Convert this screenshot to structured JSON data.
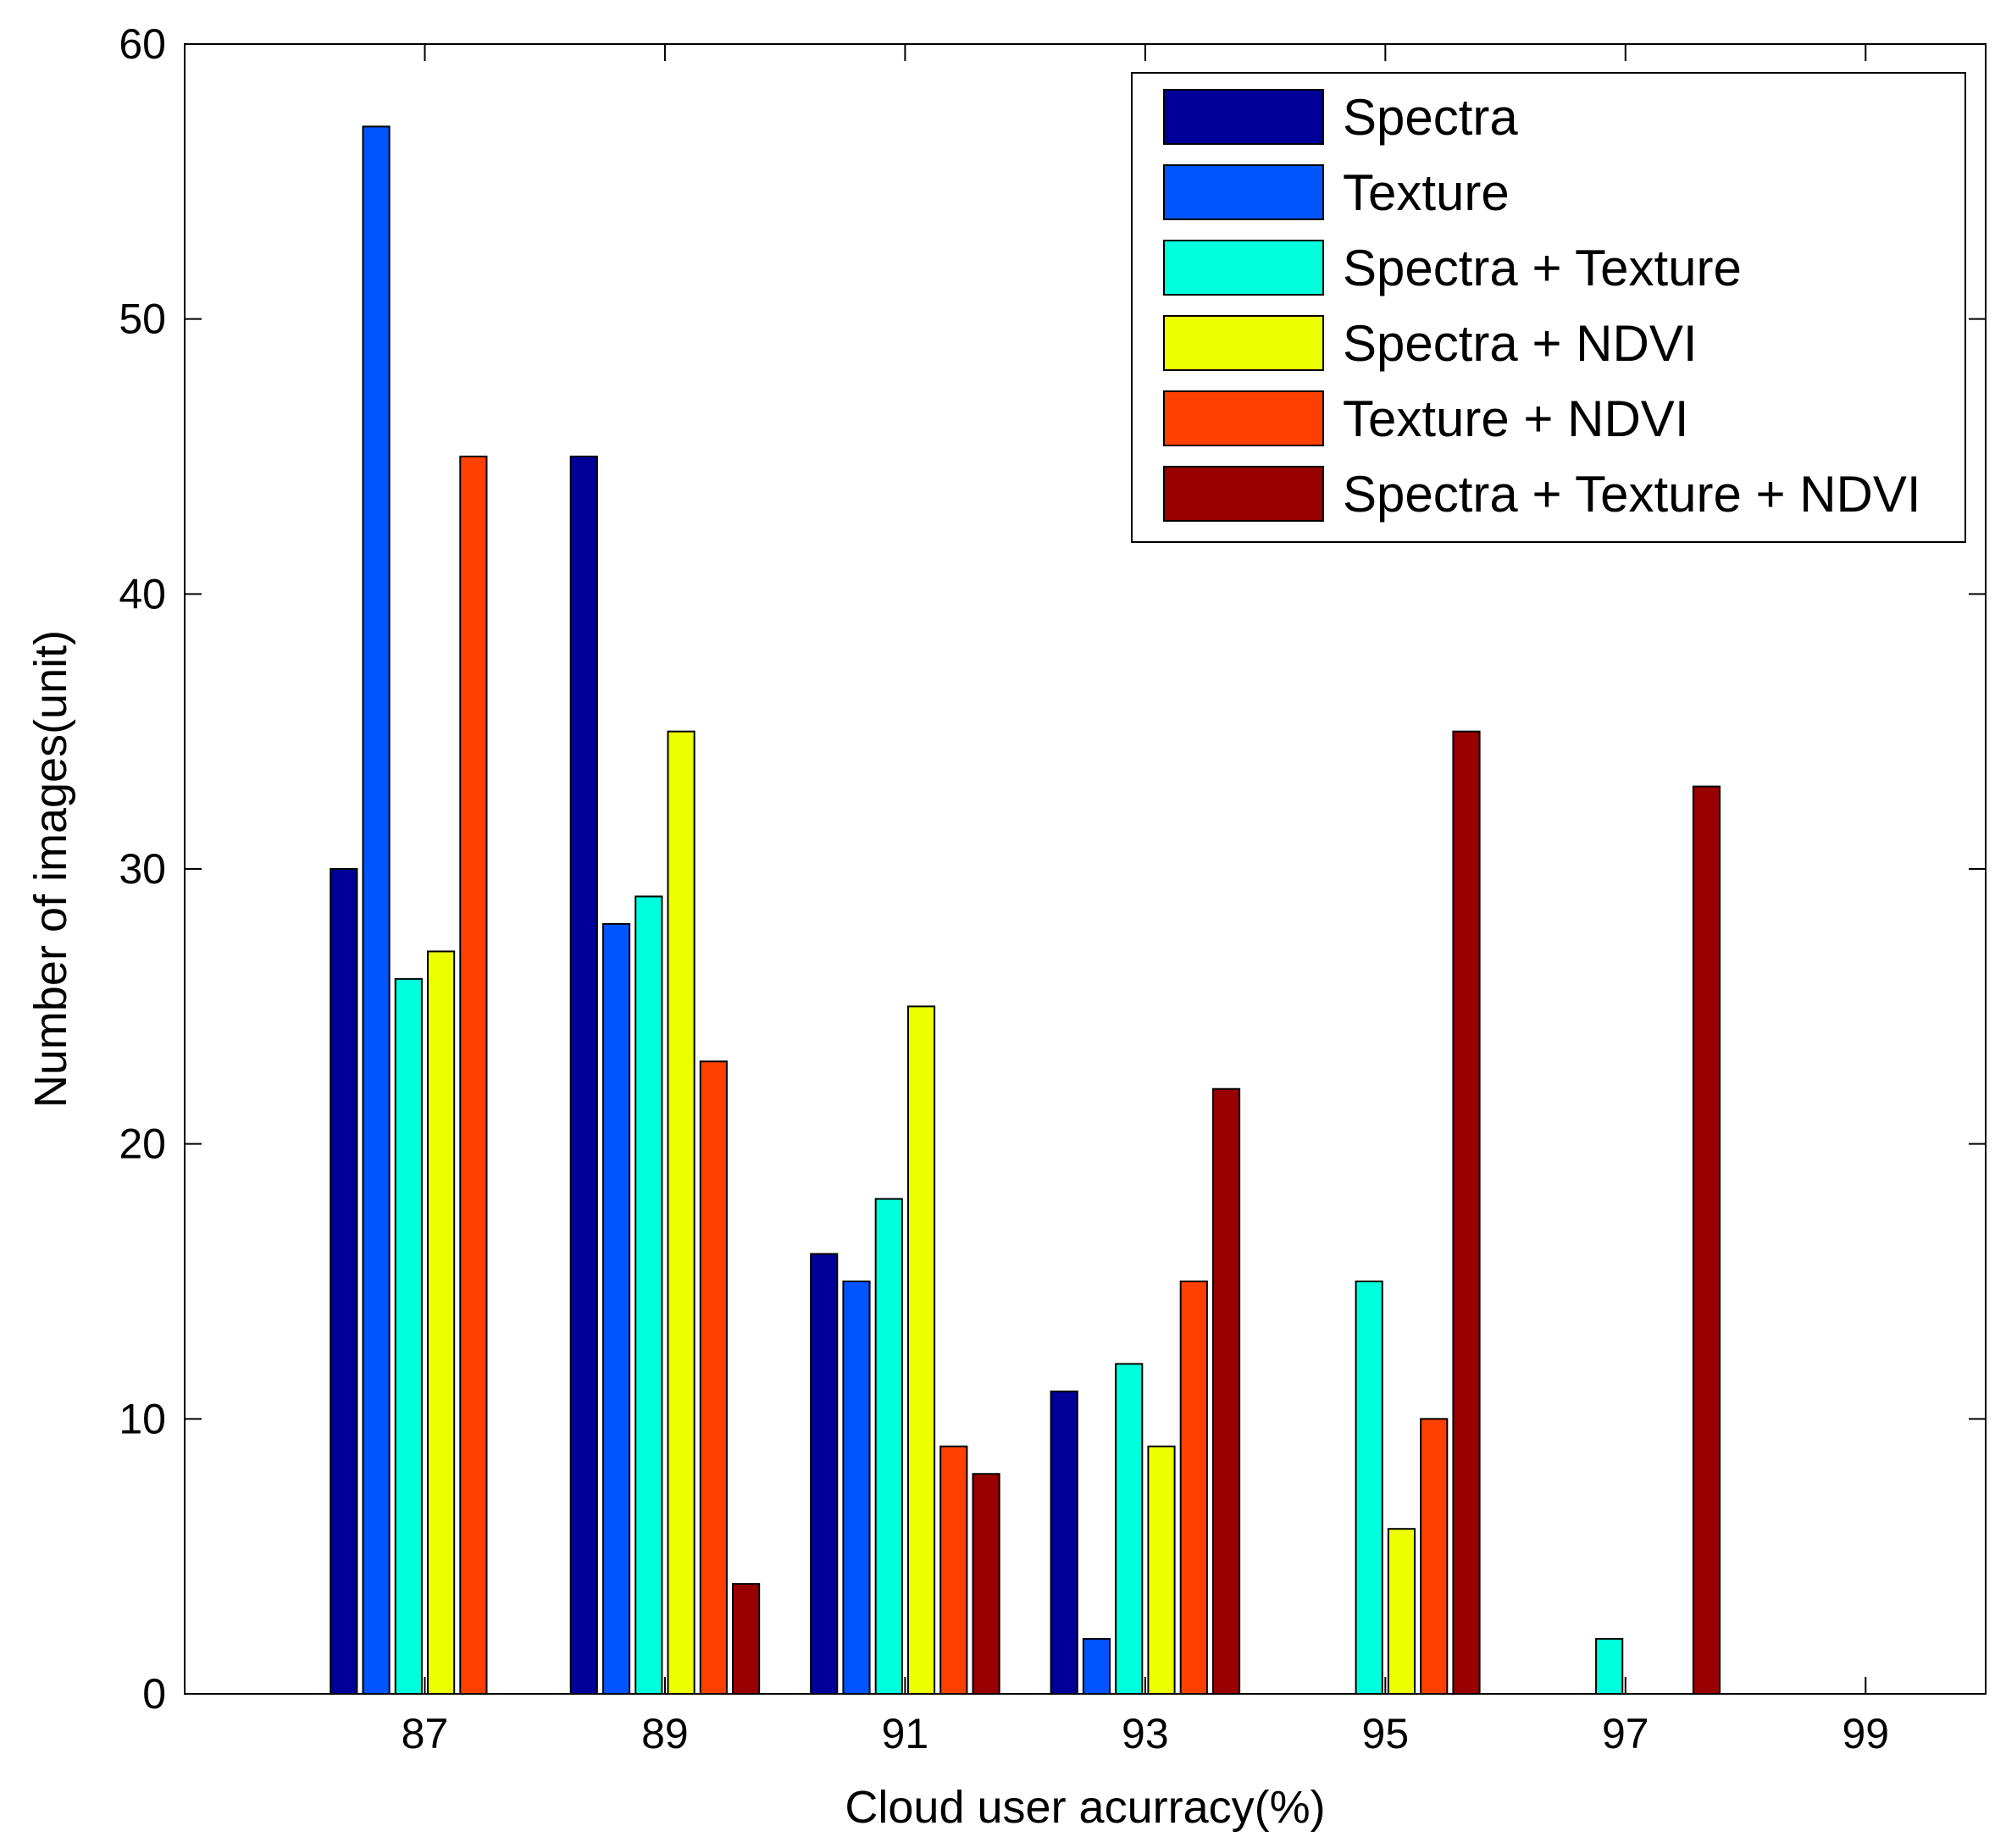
{
  "chart_data": {
    "type": "bar",
    "title": "",
    "xlabel": "Cloud user acurracy(%)",
    "ylabel": "Number of images(unit)",
    "xlim": [
      85.0,
      100.0
    ],
    "ylim": [
      0,
      60
    ],
    "x_ticks": [
      87,
      89,
      91,
      93,
      95,
      97,
      99
    ],
    "x_tick_labels": [
      "87",
      "89",
      "91",
      "93",
      "95",
      "97",
      "99"
    ],
    "y_ticks": [
      0,
      10,
      20,
      30,
      40,
      50,
      60
    ],
    "y_tick_labels": [
      "0",
      "10",
      "20",
      "30",
      "40",
      "50",
      "60"
    ],
    "categories": [
      "87",
      "89",
      "91",
      "93",
      "95",
      "97",
      "99"
    ],
    "legend_position": "top-right",
    "series": [
      {
        "name": "Spectra",
        "color": "#000099",
        "values": [
          30,
          45,
          16,
          11,
          0,
          0,
          0
        ]
      },
      {
        "name": "Texture",
        "color": "#0055ff",
        "values": [
          57,
          28,
          15,
          2,
          0,
          0,
          0
        ]
      },
      {
        "name": "Spectra + Texture",
        "color": "#00ffdd",
        "values": [
          26,
          29,
          18,
          12,
          15,
          2,
          0
        ]
      },
      {
        "name": "Spectra + NDVI",
        "color": "#eeff00",
        "values": [
          27,
          35,
          25,
          9,
          6,
          0,
          0
        ]
      },
      {
        "name": "Texture + NDVI",
        "color": "#ff4000",
        "values": [
          45,
          23,
          9,
          15,
          10,
          0,
          0
        ]
      },
      {
        "name": "Spectra + Texture + NDVI",
        "color": "#990000",
        "values": [
          0,
          4,
          8,
          22,
          35,
          33,
          0
        ]
      }
    ]
  }
}
